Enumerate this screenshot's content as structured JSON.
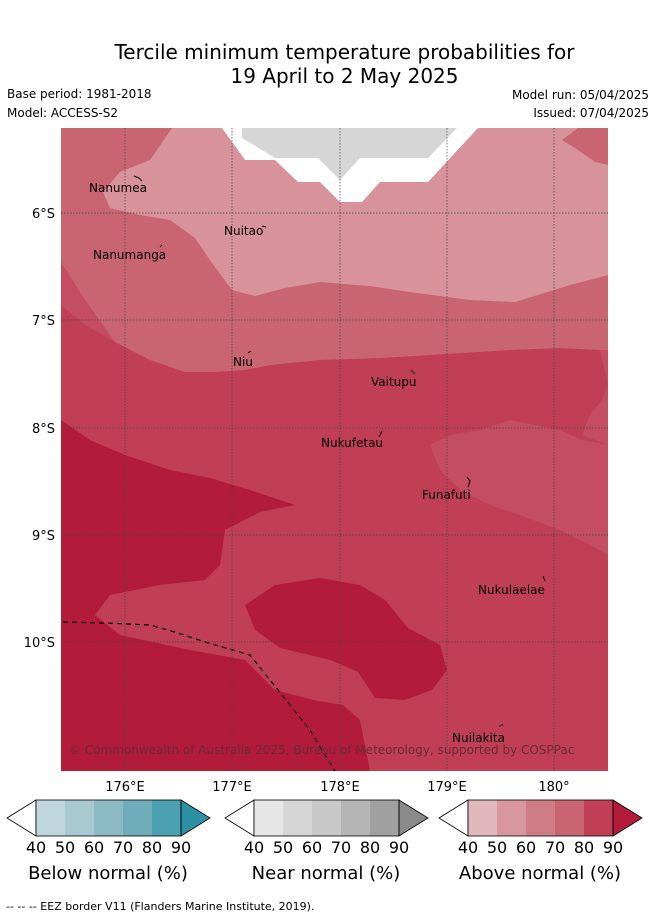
{
  "title_line1": "Tercile minimum temperature probabilities for",
  "title_line2": "19 April to 2 May 2025",
  "base_period": "Base period: 1981-2018",
  "model": "Model: ACCESS-S2",
  "model_run": "Model run: 05/04/2025",
  "issued": "Issued: 07/04/2025",
  "map": {
    "lon_ticks": [
      "176°E",
      "177°E",
      "178°E",
      "179°E",
      "180°"
    ],
    "lat_ticks": [
      "6°S",
      "7°S",
      "8°S",
      "9°S",
      "10°S"
    ],
    "places": {
      "nanumea": "Nanumea",
      "nuitao": "Nuitao",
      "nanumanga": "Nanumanga",
      "niu": "Niu",
      "vaitupu": "Vaitupu",
      "nukufetau": "Nukufetau",
      "funafuti": "Funafuti",
      "nukulaelae": "Nukulaelae",
      "nuilakita": "Nuilakita"
    },
    "copyright": "© Commonwealth of Australia 2025, Bureau of Meteorology, supported by COSPPac"
  },
  "colorbars": [
    {
      "title": "Below normal (%)",
      "ticks": [
        "40",
        "50",
        "60",
        "70",
        "80",
        "90"
      ],
      "colors": [
        "#bfd6dc",
        "#a7c9cf",
        "#8cbac4",
        "#6fadbb",
        "#4ba1b2",
        "#2d8fa4"
      ]
    },
    {
      "title": "Near normal (%)",
      "ticks": [
        "40",
        "50",
        "60",
        "70",
        "80",
        "90"
      ],
      "colors": [
        "#e6e6e6",
        "#d6d6d6",
        "#c8c8c8",
        "#b5b5b5",
        "#a0a0a0",
        "#8a8a8a"
      ]
    },
    {
      "title": "Above normal (%)",
      "ticks": [
        "40",
        "50",
        "60",
        "70",
        "80",
        "90"
      ],
      "colors": [
        "#e2b8bf",
        "#d8979e",
        "#d07c86",
        "#c96570",
        "#c03f55",
        "#b21c3a"
      ]
    }
  ],
  "footer": "-- -- -- EEZ border V11 (Flanders Marine Institute, 2019)."
}
